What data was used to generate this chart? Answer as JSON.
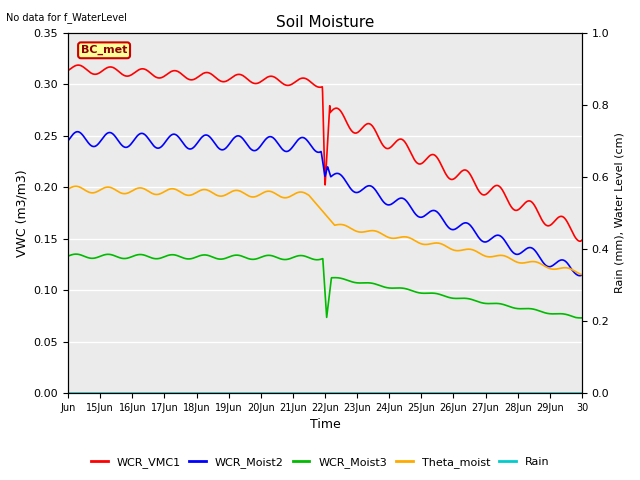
{
  "title": "Soil Moisture",
  "annotation": "No data for f_WaterLevel",
  "station_label": "BC_met",
  "ylabel_left": "VWC (m3/m3)",
  "ylabel_right": "Rain (mm), Water Level (cm)",
  "xlabel": "Time",
  "ylim_left": [
    0.0,
    0.35
  ],
  "ylim_right": [
    0.0,
    1.0
  ],
  "yticks_left": [
    0.0,
    0.05,
    0.1,
    0.15,
    0.2,
    0.25,
    0.3,
    0.35
  ],
  "yticks_right": [
    0.0,
    0.2,
    0.4,
    0.6,
    0.8,
    1.0
  ],
  "xtick_labels": [
    "Jun",
    "15Jun",
    "16Jun",
    "17Jun",
    "18Jun",
    "19Jun",
    "20Jun",
    "21Jun",
    "22Jun",
    "23Jun",
    "24Jun",
    "25Jun",
    "26Jun",
    "27Jun",
    "28Jun",
    "29Jun",
    "30"
  ],
  "colors": {
    "WCR_VMC1": "#ff0000",
    "WCR_Moist2": "#0000ff",
    "WCR_Moist3": "#00bb00",
    "Theta_moist": "#ffaa00",
    "Rain": "#00cccc"
  },
  "bg_inner_color": "#ebebeb",
  "station_box_color": "#ffff99",
  "station_box_edgecolor": "#cc0000",
  "line_width": 1.2
}
